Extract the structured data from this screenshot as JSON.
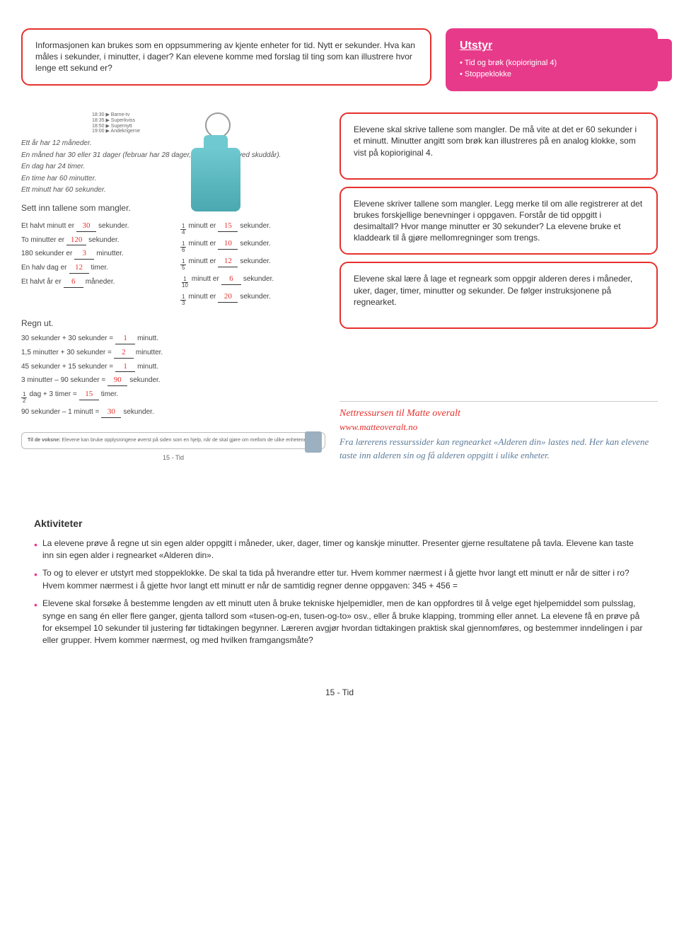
{
  "topInfo": "Informasjonen kan brukes som en oppsummering av kjente enheter for tid. Nytt er sekunder. Hva kan måles i sekunder, i minutter, i dager? Kan elevene komme med forslag til ting som kan illustrere hvor lenge ett sekund er?",
  "utstyr": {
    "title": "Utstyr",
    "items": [
      "Tid og brøk (kopioriginal 4)",
      "Stoppeklokke"
    ]
  },
  "tv": [
    "18:30 ▶ Barne-tv",
    "18:35 ▶ Superkviss",
    "18:50 ▶ Supernytt",
    "19:00 ▶ Andekrigerne"
  ],
  "facts": [
    "Ett år har 12 måneder.",
    "En måned har 30 eller 31 dager (februar har 28 dager, eller 29 dager ved skuddår).",
    "En dag har 24 timer.",
    "En time har 60 minutter.",
    "Ett minutt har 60 sekunder."
  ],
  "section1": "Sett inn tallene som mangler.",
  "left_fill": [
    {
      "pre": "Et halvt minutt er",
      "ans": "30",
      "post": "sekunder."
    },
    {
      "pre": "To minutter er",
      "ans": "120",
      "post": "sekunder."
    },
    {
      "pre": "180 sekunder er",
      "ans": "3",
      "post": "minutter."
    },
    {
      "pre": "En halv dag er",
      "ans": "12",
      "post": "timer."
    },
    {
      "pre": "Et halvt år er",
      "ans": "6",
      "post": "måneder."
    }
  ],
  "right_fill": [
    {
      "n": "1",
      "d": "4",
      "ans": "15"
    },
    {
      "n": "1",
      "d": "6",
      "ans": "10"
    },
    {
      "n": "1",
      "d": "5",
      "ans": "12"
    },
    {
      "n": "1",
      "d": "10",
      "ans": "6"
    },
    {
      "n": "1",
      "d": "3",
      "ans": "20"
    }
  ],
  "right_fill_label_mid": "minutt er",
  "right_fill_label_end": "sekunder.",
  "section2": "Regn ut.",
  "regn": [
    {
      "pre": "30 sekunder + 30 sekunder =",
      "ans": "1",
      "post": "minutt."
    },
    {
      "pre": "1,5 minutter + 30 sekunder =",
      "ans": "2",
      "post": "minutter."
    },
    {
      "pre": "45 sekunder + 15 sekunder =",
      "ans": "1",
      "post": "minutt."
    },
    {
      "pre": "3 minutter – 90 sekunder =",
      "ans": "90",
      "post": "sekunder."
    },
    {
      "frac": {
        "n": "1",
        "d": "2"
      },
      "pre": " dag + 3 timer =",
      "ans": "15",
      "post": "timer."
    },
    {
      "pre": "90 sekunder – 1 minutt =",
      "ans": "30",
      "post": "sekunder."
    }
  ],
  "tilVoksne": {
    "title": "Til de voksne:",
    "body": "Elevene kan bruke opplysningene øverst på siden som en hjelp, når de skal gjøre om mellom de ulike enhetene."
  },
  "pageNumSmall": "15 - Tid",
  "callouts": [
    "Elevene skal skrive tallene som mangler. De må vite at det er 60 sekunder i et minutt. Minutter angitt som brøk kan illustreres på en analog klokke, som vist på kopioriginal 4.",
    "Elevene skriver tallene som mangler. Legg merke til om alle registrerer at det brukes forskjellige benevninger i oppgaven. Forstår de tid oppgitt i desimaltall? Hvor mange minutter er 30 sekunder? La elevene bruke et kladdeark til å gjøre mellomregninger som trengs.",
    "Elevene skal lære å lage et regneark som oppgir alderen deres i måneder, uker, dager, timer, minutter og sekunder. De følger instruksjonene på regnearket."
  ],
  "nett": {
    "title": "Nettressursen til Matte overalt",
    "url": "www.matteoveralt.no",
    "body": "Fra lærerens ressurssider kan regnearket «Alderen din» lastes ned. Her kan elevene taste inn alderen sin og få alderen oppgitt i ulike enheter."
  },
  "aktiviteter": {
    "title": "Aktiviteter",
    "items": [
      "La elevene prøve å regne ut sin egen alder oppgitt i måneder, uker, dager, timer og kanskje minutter. Presenter gjerne resultatene på tavla. Elevene kan taste inn sin egen alder i regnearket «Alderen din».",
      "To og to elever er utstyrt med stoppeklokke. De skal ta tida på hverandre etter tur. Hvem kommer nærmest i å gjette hvor langt ett minutt er når de sitter i ro? Hvem kommer nærmest i å gjette hvor langt ett minutt er når de samtidig regner denne oppgaven: 345 + 456 =",
      "Elevene skal forsøke å bestemme lengden av ett minutt uten å bruke tekniske hjelpemidler, men de kan oppfordres til å velge eget hjelpemiddel som pulsslag, synge en sang én eller flere ganger, gjenta tallord som «tusen-og-en, tusen-og-to» osv., eller å bruke klapping, tromming eller annet. La elevene få en prøve på for eksempel 10 sekunder til justering før tidtakingen begynner. Læreren avgjør hvordan tidtakingen praktisk skal gjennomføres, og bestemmer inndelingen i par eller grupper. Hvem kommer nærmest, og med hvilken framgangsmåte?"
    ]
  },
  "footerPage": "15 - Tid"
}
